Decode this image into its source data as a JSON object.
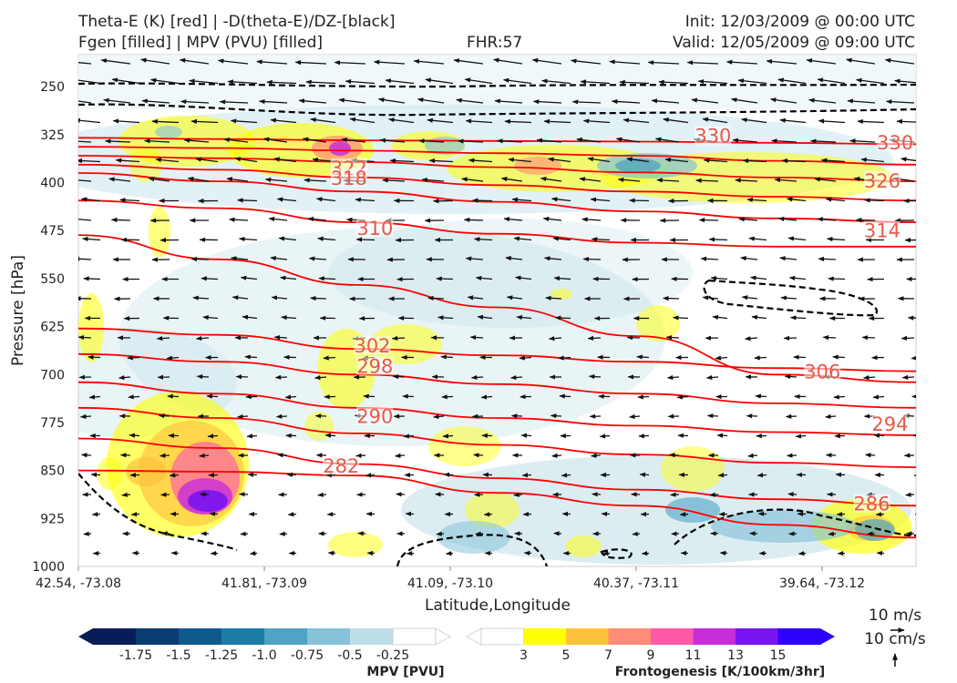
{
  "header": {
    "title_line1": "Theta-E (K) [red] | -D(theta-E)/DZ-[black]",
    "title_line2": "Fgen [filled] | MPV (PVU) [filled]",
    "fhr": "FHR:57",
    "init": "Init: 12/03/2009 @ 00:00 UTC",
    "valid": "Valid: 12/05/2009 @ 09:00 UTC"
  },
  "colors": {
    "theta_e": "#ff0000",
    "theta_e_label": "#e45a4a",
    "ddz": "#000000",
    "mpv": [
      "#081d58",
      "#0b3c72",
      "#0f5a8c",
      "#1c7da6",
      "#4fa3c4",
      "#86c2d8",
      "#bfdfe8"
    ],
    "fgen": [
      "#ffff00",
      "#ffc23c",
      "#ff8c78",
      "#ff5aaa",
      "#c82ddc",
      "#7814f0",
      "#2d00ff"
    ]
  },
  "chart_data": {
    "type": "cross-section",
    "xlabel": "Latitude,Longitude",
    "ylabel": "Pressure [hPa]",
    "xticks": [
      "42.54, -73.08",
      "41.81, -73.09",
      "41.09, -73.10",
      "40.37, -73.11",
      "39.64, -73.12"
    ],
    "x_extent": [
      42.54,
      39.32
    ],
    "yticks": [
      250,
      325,
      400,
      475,
      550,
      625,
      700,
      775,
      850,
      925,
      1000
    ],
    "ylim": [
      1000,
      200
    ],
    "theta_e": {
      "units": "K",
      "levels": [
        278,
        282,
        286,
        290,
        294,
        298,
        302,
        306,
        310,
        314,
        318,
        322,
        326,
        330
      ],
      "contours": [
        {
          "label": "330",
          "p": [
            330,
            332,
            334,
            335,
            336,
            338,
            340
          ]
        },
        {
          "label": "326",
          "p": [
            344,
            346,
            350,
            354,
            358,
            366,
            372
          ]
        },
        {
          "label": "322",
          "p": [
            358,
            362,
            368,
            376,
            384,
            392,
            398
          ]
        },
        {
          "label": "318",
          "p": [
            372,
            380,
            392,
            404,
            414,
            422,
            428
          ]
        },
        {
          "label": "314",
          "p": [
            385,
            398,
            414,
            430,
            445,
            456,
            462
          ]
        },
        {
          "label": "310",
          "p": [
            428,
            440,
            462,
            480,
            494,
            500,
            500
          ]
        },
        {
          "label": "306",
          "p": [
            482,
            520,
            560,
            595,
            640,
            700,
            712
          ]
        },
        {
          "label": "302",
          "p": [
            628,
            638,
            660,
            670,
            680,
            690,
            695
          ]
        },
        {
          "label": "298",
          "p": [
            668,
            680,
            700,
            715,
            730,
            745,
            752
          ]
        },
        {
          "label": "294",
          "p": [
            712,
            730,
            752,
            768,
            780,
            790,
            795
          ]
        },
        {
          "label": "290",
          "p": [
            752,
            768,
            792,
            810,
            825,
            838,
            845
          ]
        },
        {
          "label": "286",
          "p": [
            800,
            815,
            840,
            862,
            880,
            895,
            905
          ]
        },
        {
          "label": "282",
          "p": [
            850,
            852,
            858,
            885,
            905,
            935,
            955
          ]
        }
      ],
      "labels": [
        {
          "text": "330",
          "lat": 40.1,
          "p": 332
        },
        {
          "text": "330",
          "lat": 39.4,
          "p": 342
        },
        {
          "text": "326",
          "lat": 39.45,
          "p": 402
        },
        {
          "text": "322",
          "lat": 41.5,
          "p": 382
        },
        {
          "text": "318",
          "lat": 41.5,
          "p": 398
        },
        {
          "text": "314",
          "lat": 39.45,
          "p": 480
        },
        {
          "text": "310",
          "lat": 41.4,
          "p": 476
        },
        {
          "text": "306",
          "lat": 39.68,
          "p": 700
        },
        {
          "text": "302",
          "lat": 41.41,
          "p": 660
        },
        {
          "text": "298",
          "lat": 41.4,
          "p": 692
        },
        {
          "text": "294",
          "lat": 39.42,
          "p": 782
        },
        {
          "text": "290",
          "lat": 41.4,
          "p": 770
        },
        {
          "text": "286",
          "lat": 39.49,
          "p": 907
        },
        {
          "text": "282",
          "lat": 41.53,
          "p": 848
        }
      ]
    },
    "mpv_colorbar": {
      "label": "MPV [PVU]",
      "units": "PVU",
      "ticks": [
        "-1.75",
        "-1.5",
        "-1.25",
        "-1.0",
        "-0.75",
        "-0.5",
        "-0.25"
      ]
    },
    "fgen_colorbar": {
      "label": "Frontogenesis [K/100km/3hr]",
      "units": "K/100km/3hr",
      "ticks": [
        "3",
        "5",
        "7",
        "9",
        "11",
        "13",
        "15"
      ]
    },
    "wind_reference": {
      "horizontal": "10 m/s",
      "vertical": "10 cm/s"
    }
  }
}
